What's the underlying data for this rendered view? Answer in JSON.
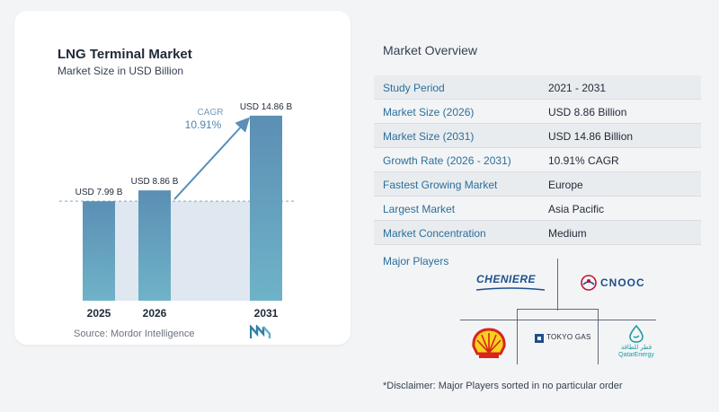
{
  "chart_data": {
    "type": "bar",
    "title": "LNG Terminal Market",
    "subtitle": "Market Size in USD Billion",
    "categories": [
      "2025",
      "2026",
      "2031"
    ],
    "values": [
      7.99,
      8.86,
      14.86
    ],
    "data_labels": [
      "USD 7.99 B",
      "USD 8.86 B",
      "USD 14.86 B"
    ],
    "ylim": [
      0,
      15.5
    ],
    "cagr_label": "CAGR",
    "cagr_value": "10.91%",
    "colors": {
      "bar_top": "#5b8fb4",
      "bar_bottom": "#6fb3c8",
      "shade": "#dfe8f1",
      "arrow": "#5a8fb8",
      "dash": "#7aa9c7"
    }
  },
  "source": "Source:  Mordor Intelligence",
  "overview": {
    "title": "Market Overview",
    "rows": [
      {
        "label": "Study Period",
        "value": "2021 - 2031"
      },
      {
        "label": "Market Size (2026)",
        "value": "USD 8.86 Billion"
      },
      {
        "label": "Market Size (2031)",
        "value": "USD 14.86 Billion"
      },
      {
        "label": "Growth Rate (2026 - 2031)",
        "value": "10.91% CAGR"
      },
      {
        "label": "Fastest Growing Market",
        "value": "Europe"
      },
      {
        "label": "Largest Market",
        "value": "Asia Pacific"
      },
      {
        "label": "Market Concentration",
        "value": "Medium"
      }
    ]
  },
  "players": {
    "title": "Major Players",
    "logos": {
      "cheniere": "CHENIERE",
      "cnooc": "CNOOC",
      "shell": "shell-logo",
      "tokyo_gas": "TOKYO GAS",
      "qatar_energy_ar": "قطر للطاقة",
      "qatar_energy": "QatarEnergy"
    }
  },
  "disclaimer": "*Disclaimer: Major Players sorted in no particular order"
}
